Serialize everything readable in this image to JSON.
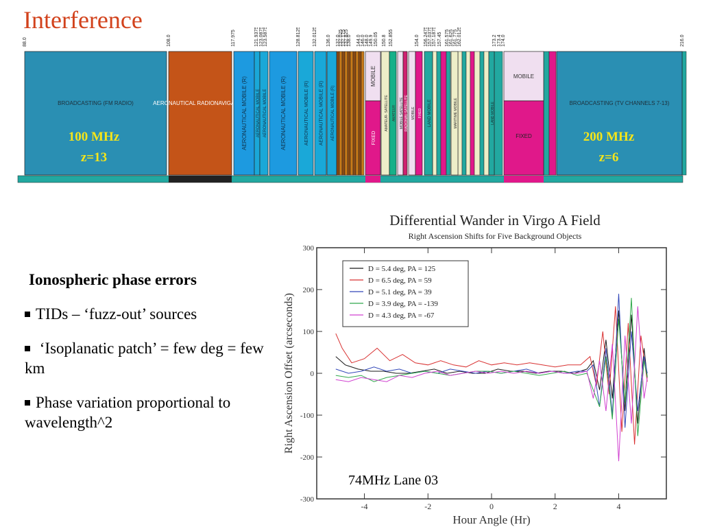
{
  "slide": {
    "title": "Interference",
    "bullets_header": "Ionospheric phase errors",
    "bullets": [
      "TIDs – ‘fuzz-out’ sources",
      " ‘Isoplanatic patch’ = few deg = few km",
      "Phase variation proportional to wavelength^2"
    ]
  },
  "spectrum": {
    "freq_labels": [
      "88.0",
      "108.0",
      "117.975",
      "121.9375",
      "123.0875",
      "123.5875",
      "128.8125",
      "132.0125",
      "136.0",
      "137.0",
      "137.025",
      "137.175",
      "137.825",
      "138.0",
      "144.0",
      "146.0",
      "148.0",
      "149.9",
      "150.05",
      "150.8",
      "152.855",
      "154.0",
      "156.2475",
      "157.0375",
      "157.1875",
      "157.45",
      "161.575",
      "161.625",
      "161.775",
      "162.0125",
      "173.2",
      "173.4",
      "174.0",
      "216.0"
    ],
    "bands": [
      {
        "label": "BROADCASTING (FM RADIO)",
        "note1": "100 MHz",
        "note2": "z=13"
      },
      {
        "label": "AERONAUTICAL RADIONAVIGATION"
      },
      {
        "label": "AERONAUTICAL MOBILE (R)"
      },
      {
        "label": "AERONAUTICAL MOBILE"
      },
      {
        "label": "AERONAUTICAL MOBILE"
      },
      {
        "label": "AERONAUTICAL MOBILE (R)"
      },
      {
        "label": "AERONAUTICAL MOBILE (R)"
      },
      {
        "label": "AERONAUTICAL MOBILE (R)"
      },
      {
        "label": "AERONAUTICAL MOBILE (R)"
      },
      {
        "label": "MOBILE"
      },
      {
        "label": "FIXED"
      },
      {
        "label": "AMATEUR- SATELLITE"
      },
      {
        "label": "AMATEUR"
      },
      {
        "label": "MOBILE SATELLITE"
      },
      {
        "label": "RADIONAV-SATELLITE"
      },
      {
        "label": "MOBILE"
      },
      {
        "label": "FIXED"
      },
      {
        "label": "LAND MOBILE"
      },
      {
        "label": "MARITIME MOBILE"
      },
      {
        "label": "MOBILE"
      },
      {
        "label": "FIXED"
      },
      {
        "label": "LAND MOBILE"
      },
      {
        "label": "BROADCASTING (TV CHANNELS 7-13)",
        "note1": "200 MHz",
        "note2": "z=6"
      }
    ]
  },
  "chart_data": {
    "type": "line",
    "title": "Differential Wander in Virgo A Field",
    "subtitle": "Right Ascension Shifts for Five Background Objects",
    "xlabel": "Hour Angle (Hr)",
    "ylabel": "Right Ascension Offset (arcseconds)",
    "xlim": [
      -5.5,
      5.5
    ],
    "ylim": [
      -300,
      300
    ],
    "xticks": [
      -4,
      -2,
      0,
      2,
      4
    ],
    "yticks": [
      300,
      200,
      100,
      0,
      -100,
      -200,
      -300
    ],
    "annotation": "74MHz Lane 03",
    "legend_position": "top-left",
    "series": [
      {
        "name": "D = 5.4 deg, PA = 125",
        "color": "#1a1a1a",
        "x": [
          -4.9,
          -4.6,
          -4.2,
          -3.8,
          -3.4,
          -3.0,
          -2.6,
          -2.2,
          -1.8,
          -1.4,
          -1.0,
          -0.6,
          -0.2,
          0.2,
          0.6,
          1.0,
          1.4,
          1.8,
          2.2,
          2.6,
          3.0,
          3.2,
          3.4,
          3.6,
          3.8,
          4.0,
          4.2,
          4.4,
          4.6,
          4.8,
          4.9
        ],
        "y": [
          40,
          20,
          10,
          5,
          5,
          0,
          0,
          5,
          10,
          0,
          5,
          0,
          0,
          10,
          5,
          5,
          0,
          5,
          5,
          0,
          10,
          30,
          -40,
          80,
          -60,
          150,
          -90,
          140,
          -120,
          60,
          -10
        ]
      },
      {
        "name": "D = 6.5 deg, PA = 59",
        "color": "#d83030",
        "x": [
          -4.9,
          -4.7,
          -4.4,
          -4.0,
          -3.6,
          -3.2,
          -2.8,
          -2.4,
          -2.0,
          -1.6,
          -1.2,
          -0.8,
          -0.4,
          0.0,
          0.4,
          0.8,
          1.2,
          1.6,
          2.0,
          2.4,
          2.8,
          3.1,
          3.3,
          3.5,
          3.7,
          3.9,
          4.1,
          4.3,
          4.5,
          4.7,
          4.9
        ],
        "y": [
          95,
          60,
          25,
          35,
          60,
          30,
          45,
          25,
          20,
          30,
          20,
          15,
          30,
          20,
          25,
          20,
          25,
          20,
          15,
          20,
          20,
          40,
          -30,
          100,
          -50,
          160,
          -140,
          120,
          -170,
          90,
          -20
        ]
      },
      {
        "name": "D = 5.1 deg, PA = 39",
        "color": "#3046b8",
        "x": [
          -4.9,
          -4.5,
          -4.1,
          -3.7,
          -3.3,
          -2.9,
          -2.5,
          -2.1,
          -1.7,
          -1.3,
          -0.9,
          -0.5,
          -0.1,
          0.3,
          0.7,
          1.1,
          1.5,
          1.9,
          2.3,
          2.7,
          3.0,
          3.2,
          3.4,
          3.6,
          3.8,
          4.0,
          4.2,
          4.4,
          4.6,
          4.8,
          4.9
        ],
        "y": [
          10,
          0,
          5,
          15,
          5,
          10,
          0,
          5,
          0,
          10,
          5,
          0,
          5,
          0,
          5,
          10,
          0,
          5,
          0,
          5,
          5,
          20,
          -80,
          60,
          -100,
          190,
          -130,
          100,
          -90,
          40,
          0
        ]
      },
      {
        "name": "D = 3.9 deg, PA = -139",
        "color": "#2fa84a",
        "x": [
          -4.9,
          -4.5,
          -4.1,
          -3.7,
          -3.3,
          -2.9,
          -2.5,
          -2.1,
          -1.7,
          -1.3,
          -0.9,
          -0.5,
          -0.1,
          0.3,
          0.7,
          1.1,
          1.5,
          1.9,
          2.3,
          2.7,
          3.0,
          3.2,
          3.4,
          3.6,
          3.8,
          4.0,
          4.2,
          4.4,
          4.6,
          4.8,
          4.9
        ],
        "y": [
          -5,
          -10,
          -5,
          -20,
          -10,
          -5,
          0,
          5,
          0,
          -5,
          0,
          5,
          5,
          0,
          5,
          0,
          -5,
          0,
          5,
          -5,
          0,
          -40,
          -80,
          40,
          -110,
          130,
          -70,
          180,
          -150,
          30,
          -10
        ]
      },
      {
        "name": "D = 4.3 deg, PA = -67",
        "color": "#d040d0",
        "x": [
          -4.9,
          -4.5,
          -4.1,
          -3.7,
          -3.3,
          -2.9,
          -2.5,
          -2.1,
          -1.7,
          -1.3,
          -0.9,
          -0.5,
          -0.1,
          0.3,
          0.7,
          1.1,
          1.5,
          1.9,
          2.3,
          2.7,
          3.0,
          3.2,
          3.4,
          3.6,
          3.8,
          4.0,
          4.2,
          4.4,
          4.6,
          4.8,
          4.9
        ],
        "y": [
          -15,
          -20,
          -10,
          -15,
          -20,
          -5,
          -10,
          0,
          5,
          -5,
          0,
          5,
          0,
          5,
          0,
          5,
          0,
          5,
          0,
          0,
          5,
          -60,
          30,
          -90,
          70,
          -210,
          90,
          -120,
          160,
          -60,
          -10
        ]
      }
    ]
  }
}
